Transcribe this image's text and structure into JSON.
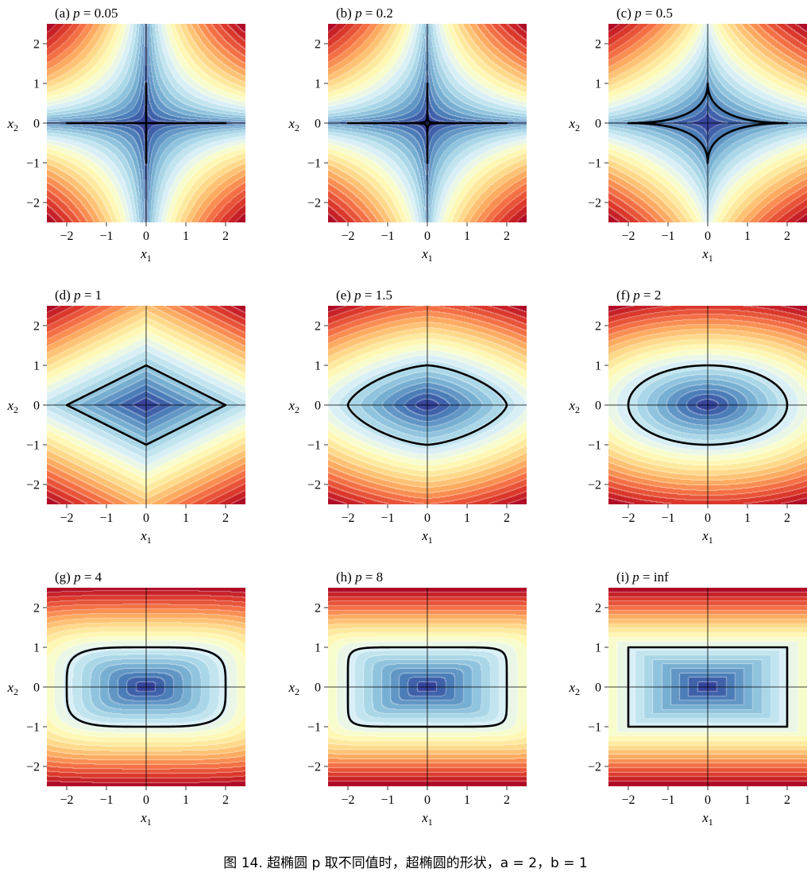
{
  "caption": {
    "text": "图 14. 超椭圆 p 取不同值时，超椭圆的形状，a = 2，b = 1"
  },
  "colormap": {
    "name": "RdYlBu_r",
    "stops": [
      "#313695",
      "#4575b4",
      "#74add1",
      "#abd9e9",
      "#e0f3f8",
      "#ffffbf",
      "#fee090",
      "#fdae61",
      "#f46d43",
      "#d73027",
      "#a50026"
    ]
  },
  "chart_data": [
    {
      "type": "contour",
      "panel": "a",
      "p": "0.05",
      "title_prefix": "(a)",
      "title_var": "p",
      "title_eq": "= 0.05",
      "superellipse": {
        "a": 2,
        "b": 1
      },
      "xlim": [
        -2.5,
        2.5
      ],
      "ylim": [
        -2.5,
        2.5
      ],
      "xticks": [
        "−2",
        "−1",
        "0",
        "1",
        "2"
      ],
      "yticks": [
        "2",
        "1",
        "0",
        "−1",
        "−2"
      ],
      "xlabel": "x",
      "xlabel_sub": "1",
      "ylabel": "x",
      "ylabel_sub": "2"
    },
    {
      "type": "contour",
      "panel": "b",
      "p": "0.2",
      "title_prefix": "(b)",
      "title_var": "p",
      "title_eq": "= 0.2",
      "superellipse": {
        "a": 2,
        "b": 1
      },
      "xlim": [
        -2.5,
        2.5
      ],
      "ylim": [
        -2.5,
        2.5
      ],
      "xticks": [
        "−2",
        "−1",
        "0",
        "1",
        "2"
      ],
      "yticks": [
        "2",
        "1",
        "0",
        "−1",
        "−2"
      ],
      "xlabel": "x",
      "xlabel_sub": "1",
      "ylabel": "x",
      "ylabel_sub": "2"
    },
    {
      "type": "contour",
      "panel": "c",
      "p": "0.5",
      "title_prefix": "(c)",
      "title_var": "p",
      "title_eq": "= 0.5",
      "superellipse": {
        "a": 2,
        "b": 1
      },
      "xlim": [
        -2.5,
        2.5
      ],
      "ylim": [
        -2.5,
        2.5
      ],
      "xticks": [
        "−2",
        "−1",
        "0",
        "1",
        "2"
      ],
      "yticks": [
        "2",
        "1",
        "0",
        "−1",
        "−2"
      ],
      "xlabel": "x",
      "xlabel_sub": "1",
      "ylabel": "x",
      "ylabel_sub": "2"
    },
    {
      "type": "contour",
      "panel": "d",
      "p": "1",
      "title_prefix": "(d)",
      "title_var": "p",
      "title_eq": "= 1",
      "superellipse": {
        "a": 2,
        "b": 1
      },
      "xlim": [
        -2.5,
        2.5
      ],
      "ylim": [
        -2.5,
        2.5
      ],
      "xticks": [
        "−2",
        "−1",
        "0",
        "1",
        "2"
      ],
      "yticks": [
        "2",
        "1",
        "0",
        "−1",
        "−2"
      ],
      "xlabel": "x",
      "xlabel_sub": "1",
      "ylabel": "x",
      "ylabel_sub": "2"
    },
    {
      "type": "contour",
      "panel": "e",
      "p": "1.5",
      "title_prefix": "(e)",
      "title_var": "p",
      "title_eq": "= 1.5",
      "superellipse": {
        "a": 2,
        "b": 1
      },
      "xlim": [
        -2.5,
        2.5
      ],
      "ylim": [
        -2.5,
        2.5
      ],
      "xticks": [
        "−2",
        "−1",
        "0",
        "1",
        "2"
      ],
      "yticks": [
        "2",
        "1",
        "0",
        "−1",
        "−2"
      ],
      "xlabel": "x",
      "xlabel_sub": "1",
      "ylabel": "x",
      "ylabel_sub": "2"
    },
    {
      "type": "contour",
      "panel": "f",
      "p": "2",
      "title_prefix": "(f)",
      "title_var": "p",
      "title_eq": "= 2",
      "superellipse": {
        "a": 2,
        "b": 1
      },
      "xlim": [
        -2.5,
        2.5
      ],
      "ylim": [
        -2.5,
        2.5
      ],
      "xticks": [
        "−2",
        "−1",
        "0",
        "1",
        "2"
      ],
      "yticks": [
        "2",
        "1",
        "0",
        "−1",
        "−2"
      ],
      "xlabel": "x",
      "xlabel_sub": "1",
      "ylabel": "x",
      "ylabel_sub": "2"
    },
    {
      "type": "contour",
      "panel": "g",
      "p": "4",
      "title_prefix": "(g)",
      "title_var": "p",
      "title_eq": "= 4",
      "superellipse": {
        "a": 2,
        "b": 1
      },
      "xlim": [
        -2.5,
        2.5
      ],
      "ylim": [
        -2.5,
        2.5
      ],
      "xticks": [
        "−2",
        "−1",
        "0",
        "1",
        "2"
      ],
      "yticks": [
        "2",
        "1",
        "0",
        "−1",
        "−2"
      ],
      "xlabel": "x",
      "xlabel_sub": "1",
      "ylabel": "x",
      "ylabel_sub": "2"
    },
    {
      "type": "contour",
      "panel": "h",
      "p": "8",
      "title_prefix": "(h)",
      "title_var": "p",
      "title_eq": "= 8",
      "superellipse": {
        "a": 2,
        "b": 1
      },
      "xlim": [
        -2.5,
        2.5
      ],
      "ylim": [
        -2.5,
        2.5
      ],
      "xticks": [
        "−2",
        "−1",
        "0",
        "1",
        "2"
      ],
      "yticks": [
        "2",
        "1",
        "0",
        "−1",
        "−2"
      ],
      "xlabel": "x",
      "xlabel_sub": "1",
      "ylabel": "x",
      "ylabel_sub": "2"
    },
    {
      "type": "contour",
      "panel": "i",
      "p": "inf",
      "title_prefix": "(i)",
      "title_var": "p",
      "title_eq": "= inf",
      "superellipse": {
        "a": 2,
        "b": 1
      },
      "xlim": [
        -2.5,
        2.5
      ],
      "ylim": [
        -2.5,
        2.5
      ],
      "xticks": [
        "−2",
        "−1",
        "0",
        "1",
        "2"
      ],
      "yticks": [
        "2",
        "1",
        "0",
        "−1",
        "−2"
      ],
      "xlabel": "x",
      "xlabel_sub": "1",
      "ylabel": "x",
      "ylabel_sub": "2"
    }
  ]
}
